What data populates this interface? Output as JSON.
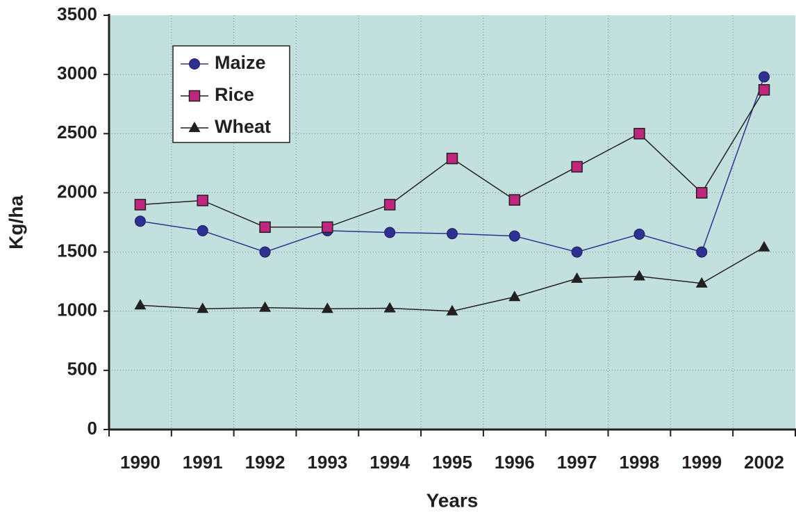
{
  "chart_data": {
    "type": "line",
    "x_label": "Years",
    "y_label": "Kg/ha",
    "categories": [
      "1990",
      "1991",
      "1992",
      "1993",
      "1994",
      "1995",
      "1996",
      "1997",
      "1998",
      "1999",
      "2002"
    ],
    "series": [
      {
        "name": "Maize",
        "color": "#2e3192",
        "marker": "circle",
        "marker_color": "#2e3192",
        "values": [
          1760,
          1680,
          1500,
          1680,
          1665,
          1655,
          1635,
          1500,
          1650,
          1500,
          2980
        ]
      },
      {
        "name": "Rice",
        "color": "#231f20",
        "marker": "square",
        "marker_color": "#c0267e",
        "values": [
          1900,
          1935,
          1710,
          1710,
          1900,
          2290,
          1940,
          2220,
          2500,
          2000,
          2870
        ]
      },
      {
        "name": "Wheat",
        "color": "#231f20",
        "marker": "triangle",
        "marker_color": "#231f20",
        "values": [
          1050,
          1020,
          1030,
          1020,
          1025,
          1000,
          1120,
          1275,
          1295,
          1235,
          1540
        ]
      }
    ],
    "ylim": [
      0,
      3500
    ],
    "yticks": [
      0,
      500,
      1000,
      1500,
      2000,
      2500,
      3000,
      3500
    ],
    "grid": true,
    "background": "#c2e0dd",
    "legend": "upper left"
  }
}
